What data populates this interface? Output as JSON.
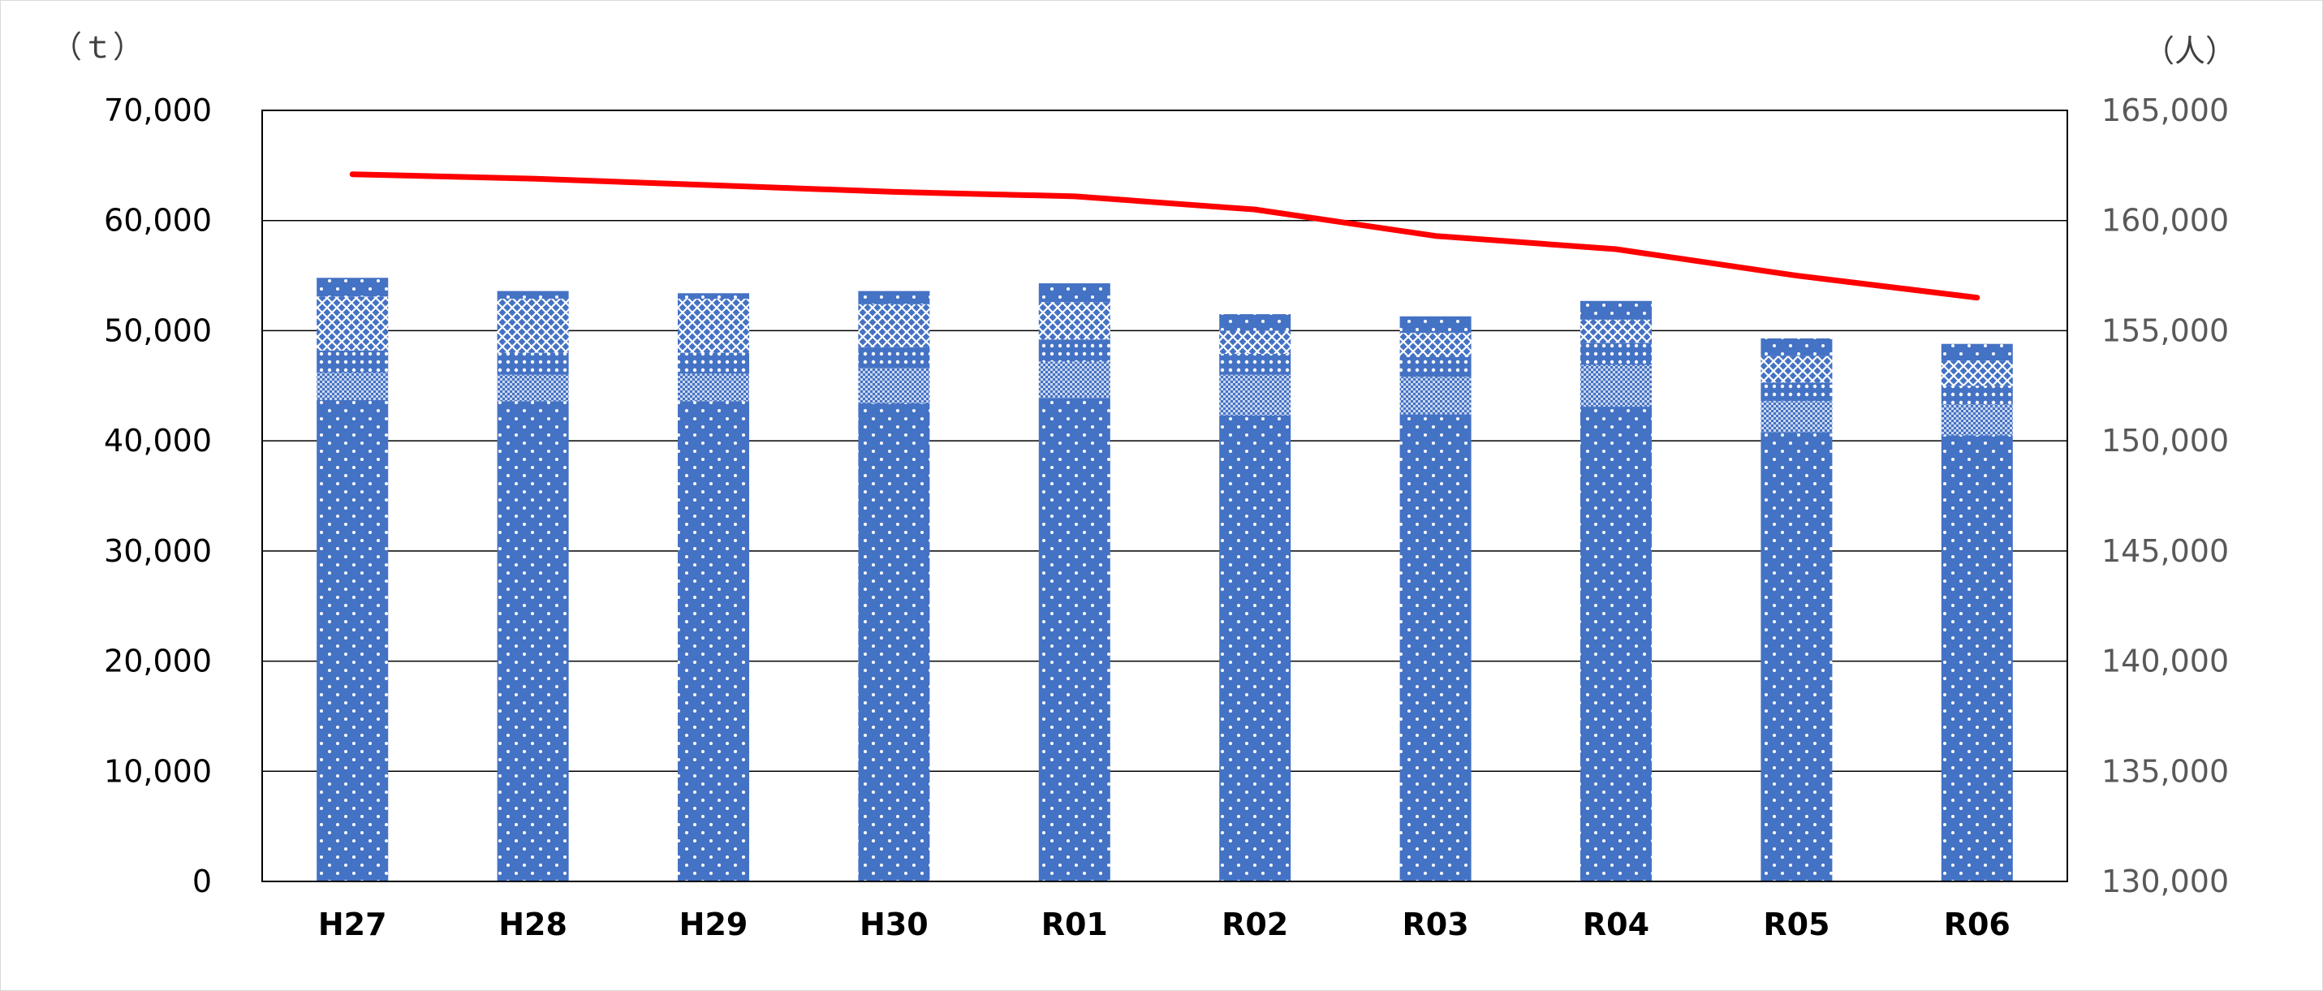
{
  "chart_data": {
    "type": "bar",
    "stacked": true,
    "categories": [
      "H27",
      "H28",
      "H29",
      "H30",
      "R01",
      "R02",
      "R03",
      "R04",
      "R05",
      "R06"
    ],
    "y_left": {
      "unit_label": "（ｔ）",
      "range": [
        0,
        70000
      ],
      "ticks": [
        "0",
        "10,000",
        "20,000",
        "30,000",
        "40,000",
        "50,000",
        "60,000",
        "70,000"
      ]
    },
    "y_right": {
      "unit_label": "（人）",
      "range": [
        130000,
        165000
      ],
      "ticks": [
        "130,000",
        "135,000",
        "140,000",
        "145,000",
        "150,000",
        "155,000",
        "160,000",
        "165,000"
      ]
    },
    "series": [
      {
        "axis": "left",
        "pattern": "small-dots",
        "values": [
          43700,
          43600,
          43600,
          43400,
          43900,
          42300,
          42400,
          43100,
          40800,
          40500
        ]
      },
      {
        "axis": "left",
        "pattern": "fine-check",
        "values": [
          2500,
          2400,
          2500,
          3200,
          3300,
          3700,
          3400,
          3800,
          2800,
          2800
        ]
      },
      {
        "axis": "left",
        "pattern": "medium-dots",
        "values": [
          2000,
          2000,
          1900,
          1900,
          2000,
          1900,
          1800,
          2000,
          1700,
          1700
        ]
      },
      {
        "axis": "left",
        "pattern": "lattice",
        "values": [
          4900,
          4900,
          4900,
          3900,
          3400,
          2100,
          2200,
          2100,
          2400,
          2300
        ]
      },
      {
        "axis": "left",
        "pattern": "small-dots",
        "values": [
          1700,
          700,
          500,
          1200,
          1700,
          1500,
          1500,
          1700,
          1600,
          1500
        ]
      },
      {
        "axis": "right",
        "type": "line",
        "color": "#ff0000",
        "values": [
          162100,
          161900,
          161600,
          161300,
          161100,
          160500,
          159300,
          158700,
          157500,
          156500
        ]
      }
    ],
    "colors": {
      "bar": "#4472c4",
      "line": "#ff0000",
      "grid": "#000000"
    },
    "grid": true
  }
}
